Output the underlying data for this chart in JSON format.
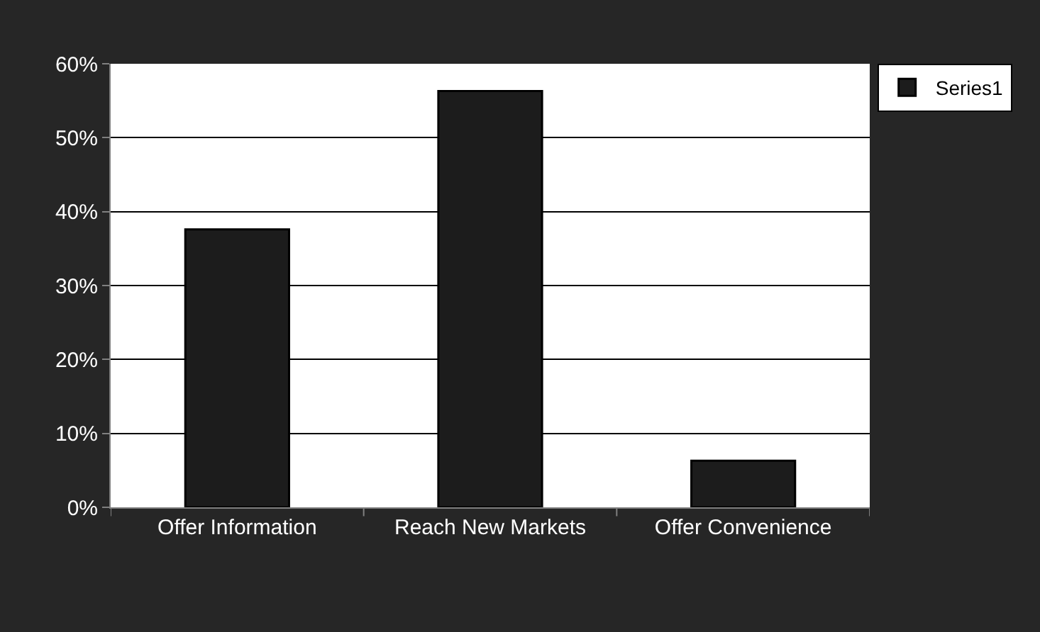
{
  "chart_data": {
    "type": "bar",
    "categories": [
      "Offer Information",
      "Reach New Markets",
      "Offer Convenience"
    ],
    "series": [
      {
        "name": "Series1",
        "color": "#1c1c1c",
        "values": [
          37.6,
          56.3,
          6.3
        ]
      }
    ],
    "ylim": [
      0,
      60
    ],
    "yticks": [
      {
        "value": 0,
        "label": "0%"
      },
      {
        "value": 10,
        "label": "10%"
      },
      {
        "value": 20,
        "label": "20%"
      },
      {
        "value": 30,
        "label": "30%"
      },
      {
        "value": 40,
        "label": "40%"
      },
      {
        "value": 50,
        "label": "50%"
      },
      {
        "value": 60,
        "label": "60%"
      }
    ],
    "grid": "y",
    "legend": "top right"
  }
}
